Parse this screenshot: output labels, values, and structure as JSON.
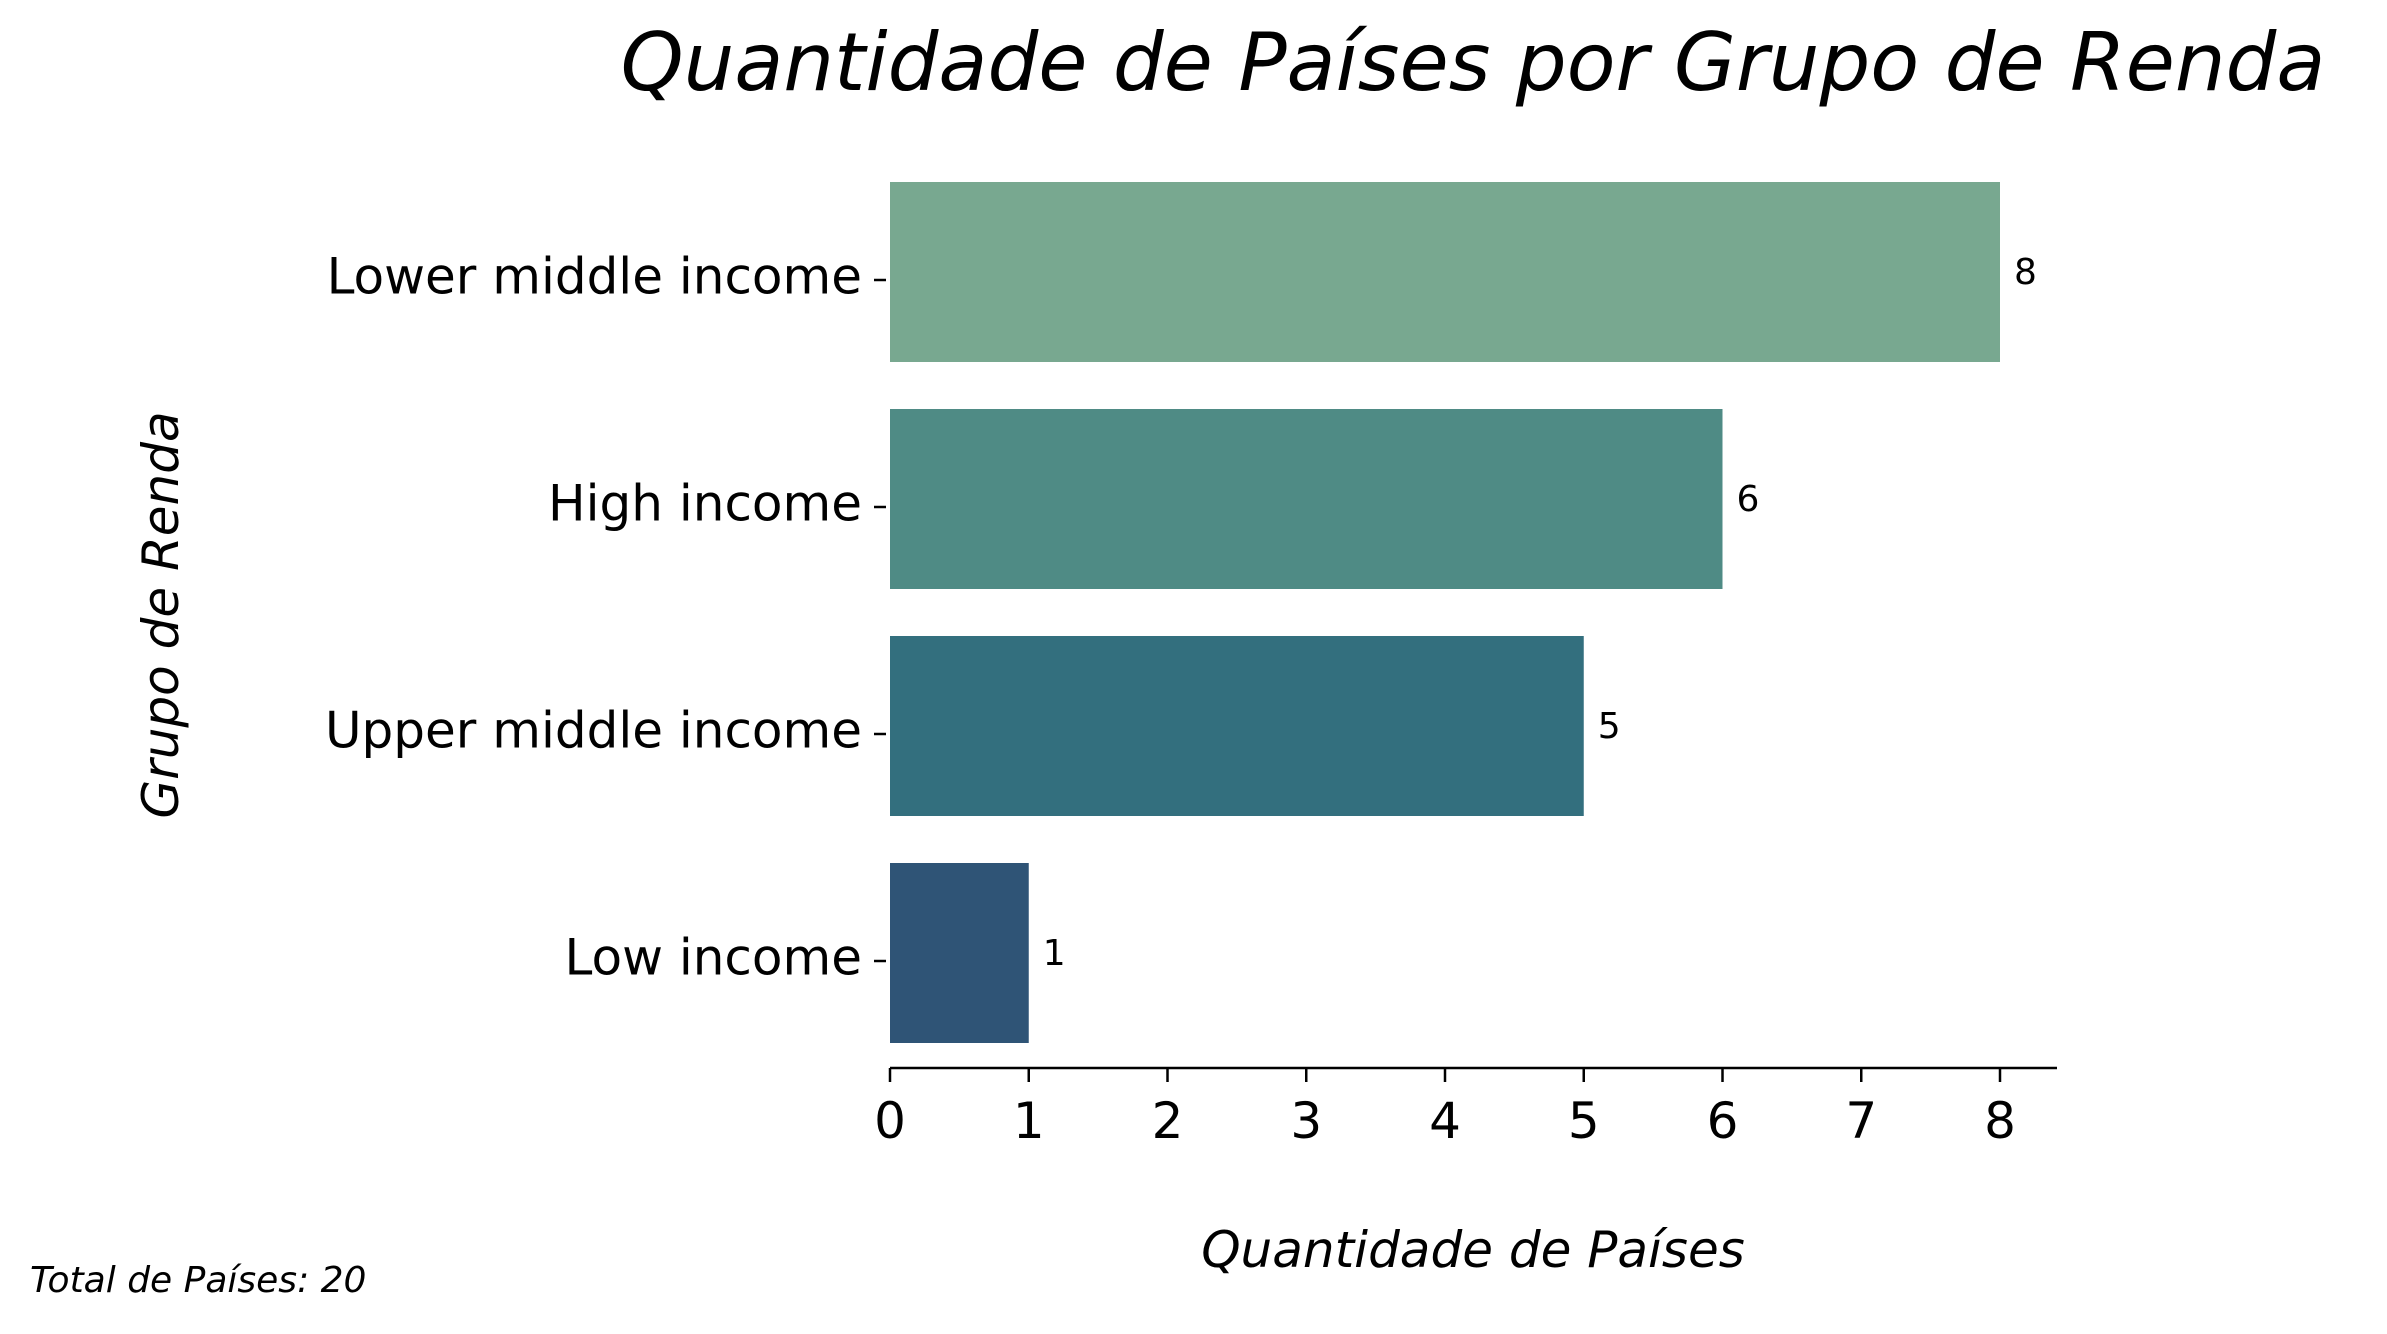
{
  "chart_data": {
    "type": "bar",
    "orientation": "horizontal",
    "title": "Quantidade de Países por Grupo de Renda",
    "xlabel": "Quantidade de Países",
    "ylabel": "Grupo de Renda",
    "categories": [
      "Lower middle income",
      "High income",
      "Upper middle income",
      "Low income"
    ],
    "values": [
      8,
      6,
      5,
      1
    ],
    "colors": [
      "#78a890",
      "#4f8b85",
      "#336f7e",
      "#2f5476"
    ],
    "xlim": [
      0,
      8.4
    ],
    "xticks": [
      0,
      1,
      2,
      3,
      4,
      5,
      6,
      7,
      8
    ],
    "grid": false,
    "legend": "none",
    "footnote": "Total de Países: 20"
  }
}
